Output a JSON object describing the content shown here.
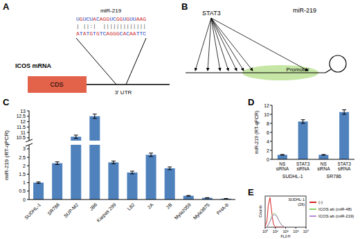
{
  "panels": [
    "A",
    "B",
    "C",
    "D",
    "E"
  ],
  "diagram_a": {
    "mirna_label": "miR-219",
    "mirna_seq": "UGUCUACAGGUCGGUGUUAAG",
    "pairing": "| ||:|  |||||||||||||",
    "target_seq": "ATATGTGTCAGGGCACAATTC",
    "gene_label": "ICOS mRNA",
    "cds_label": "CDS",
    "utr_label": "3' UTR"
  },
  "diagram_b": {
    "factor_label": "STAT3",
    "mirna_label": "miR-219",
    "promoter_label": "Promoter"
  },
  "chart_data": [
    {
      "type": "bar",
      "ylabel": "miR-219 (RT-qPCR)",
      "categories": [
        "SUDHL-1",
        "SR786",
        "SUP-M2",
        "JB6",
        "Karpas 299",
        "L82",
        "2A",
        "2B",
        "Myla2059",
        "Myla3875",
        "PHA-b"
      ],
      "values": [
        1.0,
        2.15,
        10.6,
        12.5,
        2.2,
        1.6,
        2.65,
        1.85,
        0.22,
        0.1,
        0.05
      ],
      "errors": [
        0.04,
        0.08,
        0.15,
        0.2,
        0.08,
        0.08,
        0.1,
        0.08,
        0.02,
        0.01,
        0.01
      ],
      "color": "#4f81bd",
      "ylim": [
        0,
        13
      ],
      "ybreak": [
        3.2,
        10.3
      ],
      "yticks": [
        0,
        0.5,
        1,
        1.5,
        2,
        2.5,
        3,
        10.5,
        11,
        11.5,
        12,
        12.5,
        13
      ]
    },
    {
      "type": "bar",
      "ylabel": "miR-219 (RT-qPCR)",
      "categories": [
        "NS siRNA",
        "STAT3 siRNA",
        "NS siRNA",
        "STAT3 siRNA"
      ],
      "group_labels": [
        "SUDHL-1",
        "SR786"
      ],
      "values": [
        1,
        8.4,
        1,
        10.5
      ],
      "errors": [
        0.08,
        0.4,
        0.08,
        0.5
      ],
      "color": "#4f81bd",
      "ylim": [
        0,
        12
      ],
      "yticks": [
        0,
        2,
        4,
        6,
        8,
        10,
        12
      ]
    },
    {
      "type": "line",
      "log": "x",
      "title": "SUDHL-1 (29)",
      "xlabel": "FL2-H",
      "ylabel": "Counts",
      "tick_labels": "x",
      "legend": "right",
      "x": [
        1,
        1.5,
        2,
        3,
        4,
        6,
        8,
        10,
        15,
        20,
        30,
        40,
        60,
        80,
        100,
        150
      ],
      "xlim": [
        1,
        10000
      ],
      "xticks": [
        {
          "value": 1,
          "label": "10⁰"
        },
        {
          "value": 10,
          "label": "10¹"
        },
        {
          "value": 100,
          "label": "10²"
        },
        {
          "value": 1000,
          "label": "10³"
        },
        {
          "value": 10000,
          "label": "10⁴"
        }
      ],
      "ylim": [
        0,
        100
      ],
      "series": [
        {
          "name": "(-)",
          "color": "#d62020",
          "values": [
            2,
            20,
            70,
            95,
            60,
            15,
            4,
            1,
            0,
            0,
            0,
            0,
            0,
            0,
            0,
            0
          ]
        },
        {
          "name": "ICOS ab (miR-48)",
          "color": "#8ad06a",
          "values": [
            0,
            2,
            8,
            20,
            32,
            42,
            45,
            43,
            35,
            25,
            14,
            8,
            3,
            1,
            0,
            0
          ]
        },
        {
          "name": "ICOS ab (miR-219)",
          "color": "#b48ad6",
          "values": [
            0,
            2,
            7,
            18,
            28,
            38,
            40,
            39,
            32,
            24,
            13,
            7,
            3,
            1,
            0,
            0
          ]
        }
      ]
    }
  ]
}
